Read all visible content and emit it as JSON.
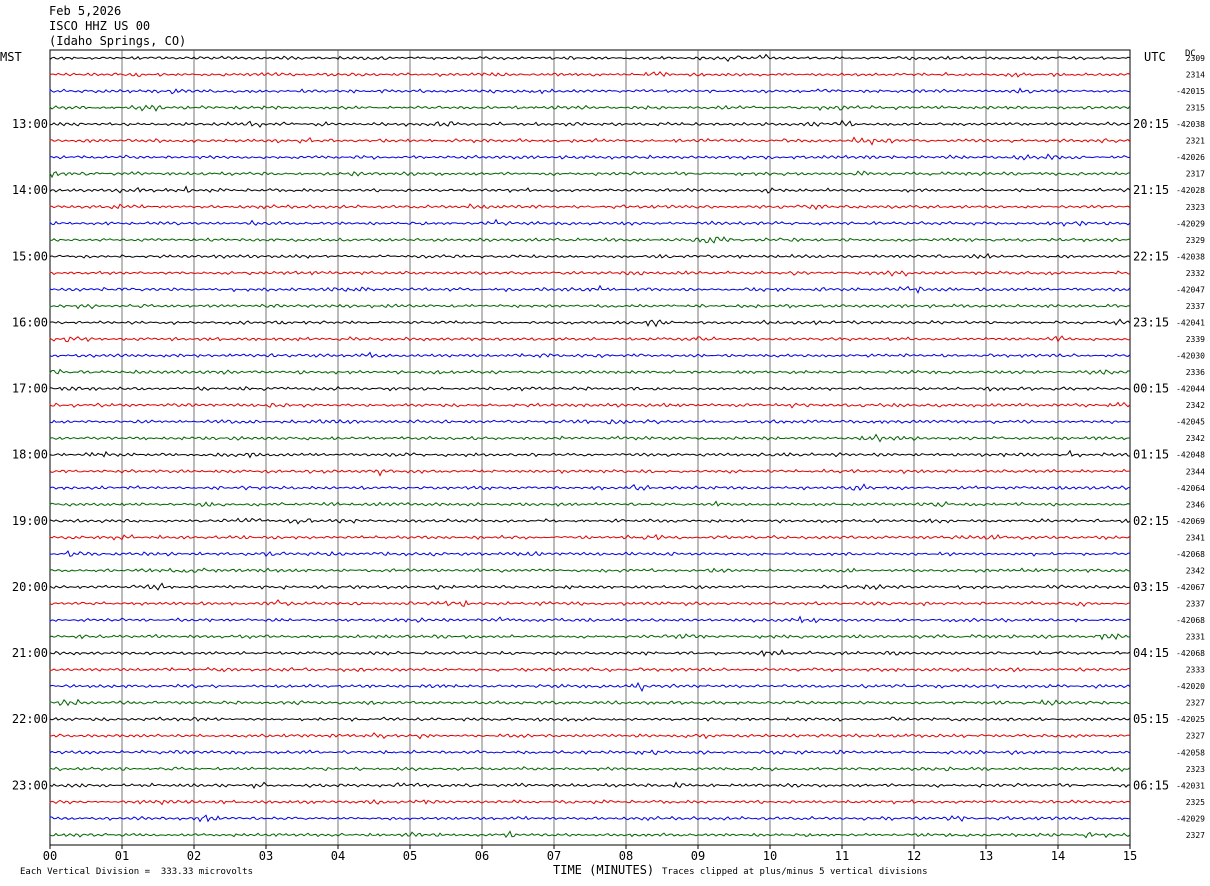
{
  "header": {
    "date": "Feb 5,2026",
    "station": "ISCO HHZ US 00",
    "location": "(Idaho Springs, CO)"
  },
  "labels": {
    "left_tz": "MST",
    "right_tz": "UTC",
    "dc": "DC",
    "x_axis": "TIME (MINUTES)",
    "scale_note": "Each Vertical Division =  333.33 microvolts",
    "clip_note": "Traces clipped at plus/minus 5 vertical divisions"
  },
  "chart_data": {
    "type": "line",
    "title": "",
    "xlabel": "TIME (MINUTES)",
    "xlim": [
      0,
      15
    ],
    "x_ticks": [
      "00",
      "01",
      "02",
      "03",
      "04",
      "05",
      "06",
      "07",
      "08",
      "09",
      "10",
      "11",
      "12",
      "13",
      "14",
      "15"
    ],
    "trace_count": 48,
    "trace_colors": [
      "#000000",
      "#e00000",
      "#0000e0",
      "#006400"
    ],
    "left_hour_labels": [
      "13:00",
      "14:00",
      "15:00",
      "16:00",
      "17:00",
      "18:00",
      "19:00",
      "20:00",
      "21:00",
      "22:00",
      "23:00"
    ],
    "right_hour_labels": [
      "20:15",
      "21:15",
      "22:15",
      "23:15",
      "00:15",
      "01:15",
      "02:15",
      "03:15",
      "04:15",
      "05:15",
      "06:15"
    ],
    "dc_offsets": [
      "2309",
      "2314",
      "-42015",
      "2315",
      "-42038",
      "2321",
      "-42026",
      "2317",
      "-42028",
      "2323",
      "-42029",
      "2329",
      "-42038",
      "2332",
      "-42047",
      "2337",
      "-42041",
      "2339",
      "-42030",
      "2336",
      "-42044",
      "2342",
      "-42045",
      "2342",
      "-42048",
      "2344",
      "-42064",
      "2346",
      "-42069",
      "2341",
      "-42068",
      "2342",
      "-42067",
      "2337",
      "-42068",
      "2331",
      "-42068",
      "2333",
      "-42020",
      "2327",
      "-42025",
      "2327",
      "-42058",
      "2323",
      "-42031",
      "2325",
      "-42029",
      "2327"
    ]
  }
}
